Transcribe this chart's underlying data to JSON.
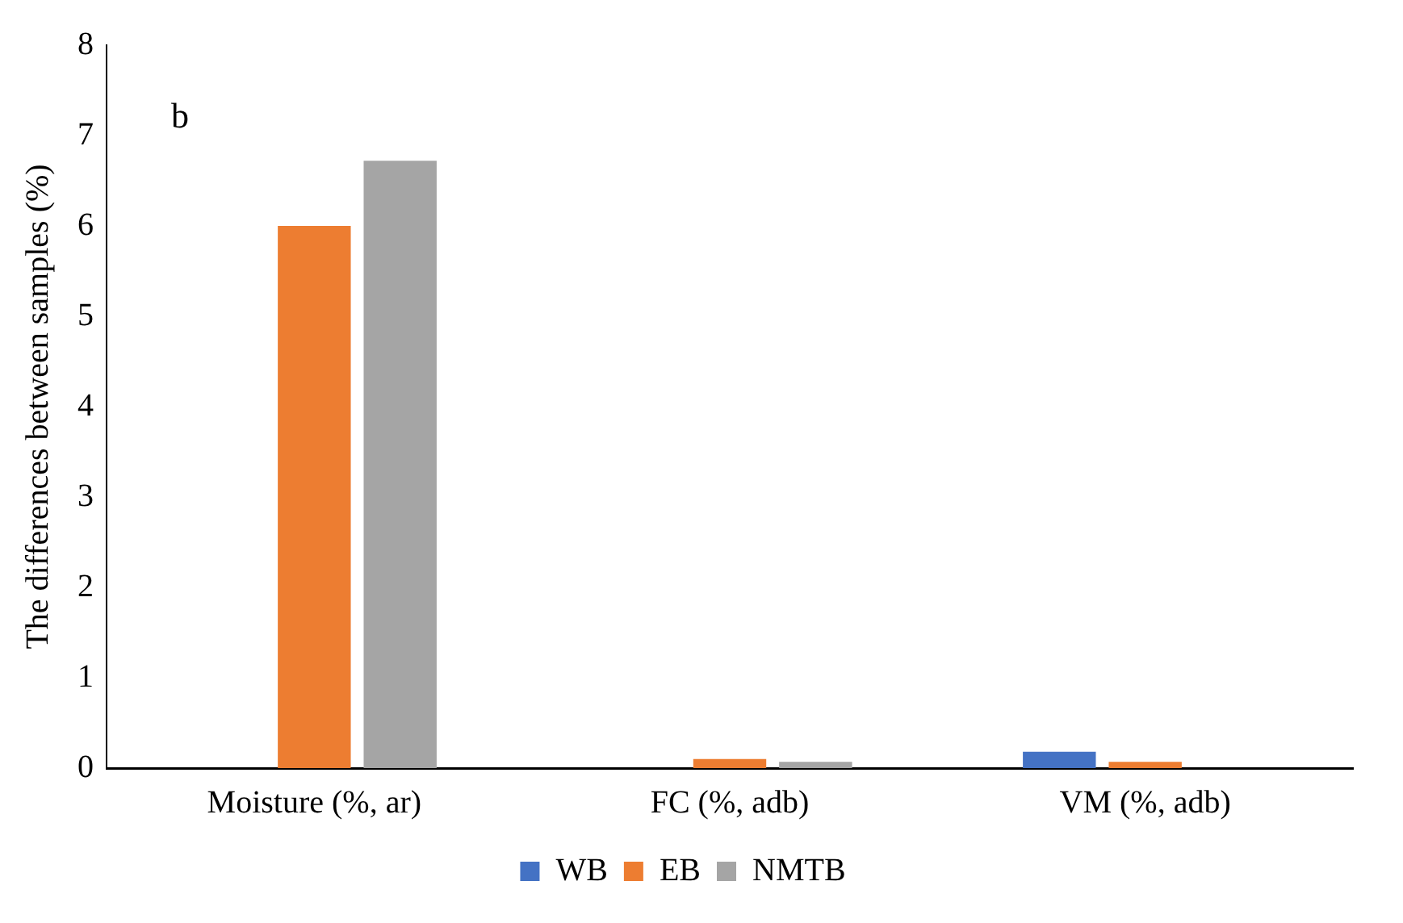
{
  "chart_data": {
    "type": "bar",
    "ylabel": "The differences between samples (%)",
    "categories": [
      "Moisture (%, ar)",
      "FC (%, adb)",
      "VM (%, adb)"
    ],
    "series": [
      {
        "name": "WB",
        "color": "#4472c4",
        "values": [
          0,
          0,
          0.18
        ]
      },
      {
        "name": "EB",
        "color": "#ed7d31",
        "values": [
          6.0,
          0.1,
          0.07
        ]
      },
      {
        "name": "NMTB",
        "color": "#a5a5a5",
        "values": [
          6.72,
          0.07,
          0
        ]
      }
    ],
    "ylim": [
      0,
      8
    ],
    "yticks": [
      0,
      1,
      2,
      3,
      4,
      5,
      6,
      7,
      8
    ],
    "grid": false,
    "legend": "bottom",
    "annotations": [
      "b"
    ]
  }
}
